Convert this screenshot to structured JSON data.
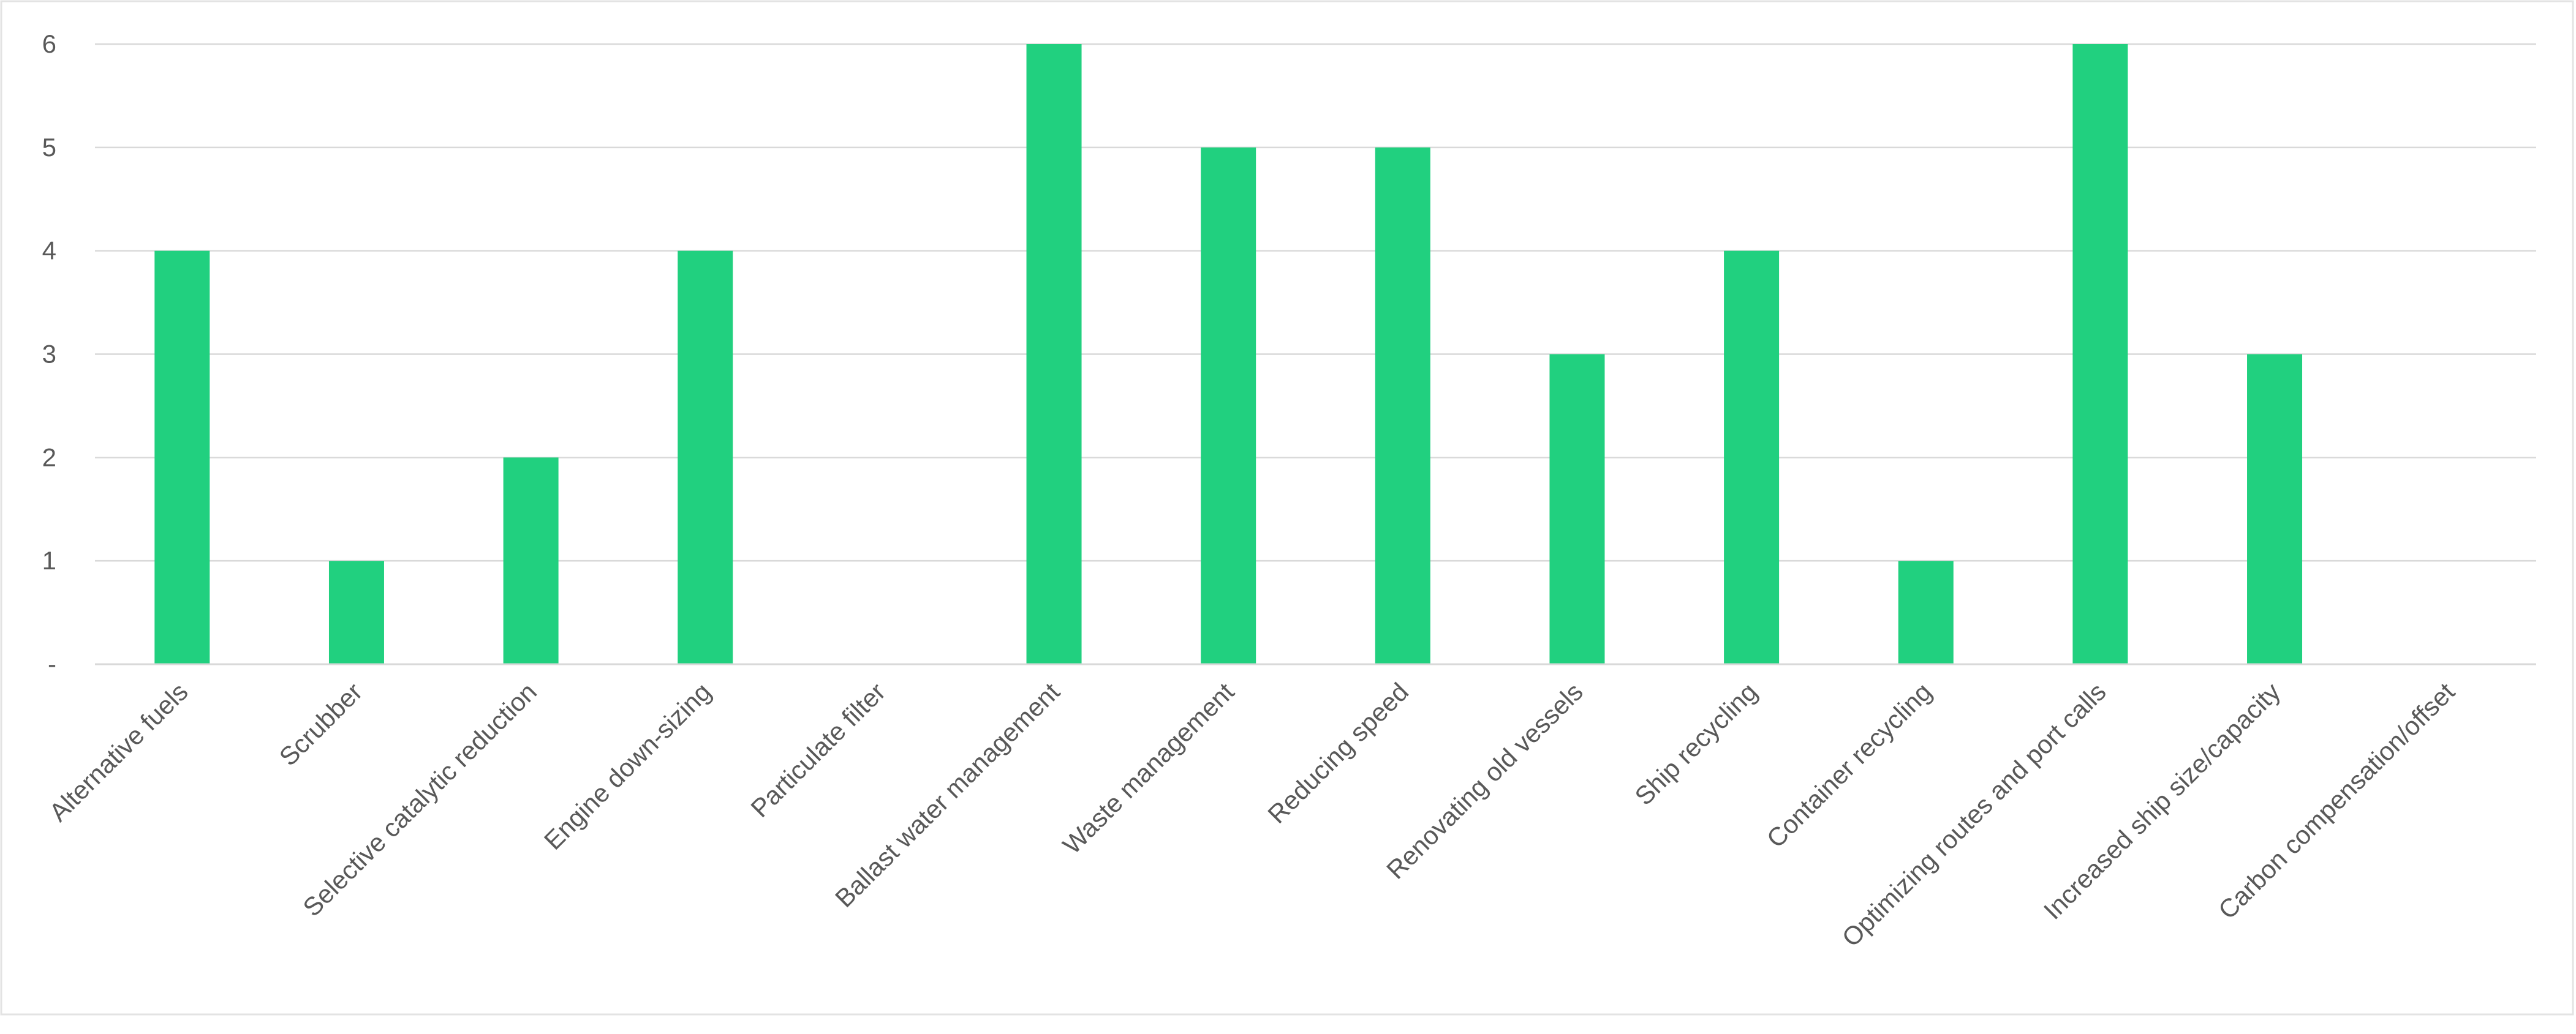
{
  "chart_data": {
    "type": "bar",
    "title": "",
    "xlabel": "",
    "ylabel": "",
    "categories": [
      "Alternative fuels",
      "Scrubber",
      "Selective catalytic reduction",
      "Engine down-sizing",
      "Particulate filter",
      "Ballast water management",
      "Waste management",
      "Reducing speed",
      "Renovating old vessels",
      "Ship recycling",
      "Container recycling",
      "Optimizing routes and port calls",
      "Increased ship size/capacity",
      "Carbon compensation/offset"
    ],
    "values": [
      4,
      1,
      2,
      4,
      0,
      6,
      5,
      5,
      3,
      4,
      1,
      6,
      3,
      0
    ],
    "ylim": [
      0,
      6
    ],
    "yticks": [
      "-",
      "1",
      "2",
      "3",
      "4",
      "5",
      "6"
    ],
    "grid": true,
    "legend": "none",
    "bar_color": "#21d07f"
  }
}
